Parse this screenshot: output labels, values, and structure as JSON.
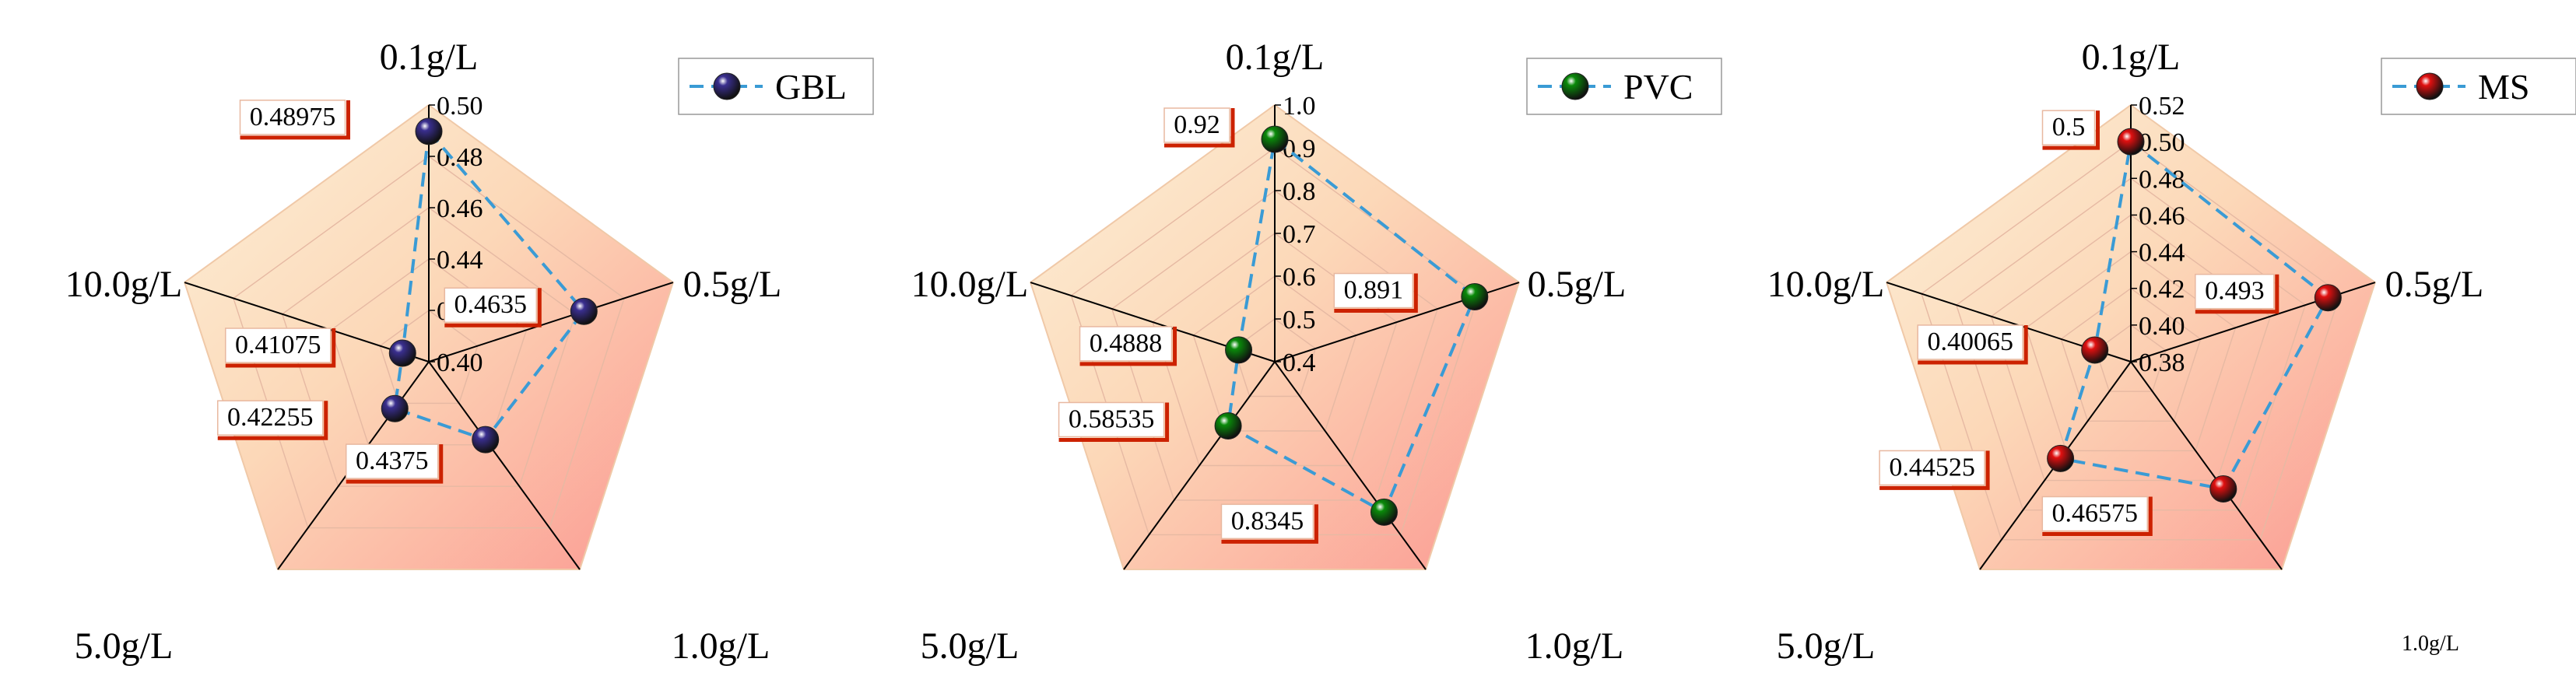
{
  "chart_data": [
    {
      "type": "radar",
      "categories": [
        "0.1g/L",
        "0.5g/L",
        "1.0g/L",
        "5.0g/L",
        "10.0g/L"
      ],
      "series": [
        {
          "name": "GBL",
          "values": [
            0.48975,
            0.4635,
            0.4375,
            0.42255,
            0.41075
          ]
        }
      ],
      "data_labels": [
        "0.48975",
        "0.4635",
        "0.4375",
        "0.42255",
        "0.41075"
      ],
      "rlim": [
        0.4,
        0.5
      ],
      "ticks": [
        "0.40",
        "0.42",
        "0.44",
        "0.46",
        "0.48",
        "0.50"
      ],
      "grid": true,
      "legend_position": "top-right",
      "colors": {
        "marker": "#3a2f8f",
        "line": "#3a9bd5",
        "label_box": "#cc2200"
      }
    },
    {
      "type": "radar",
      "categories": [
        "0.1g/L",
        "0.5g/L",
        "1.0g/L",
        "5.0g/L",
        "10.0g/L"
      ],
      "series": [
        {
          "name": "PVC",
          "values": [
            0.92,
            0.891,
            0.8345,
            0.58535,
            0.4888
          ]
        }
      ],
      "data_labels": [
        "0.92",
        "0.891",
        "0.8345",
        "0.58535",
        "0.4888"
      ],
      "rlim": [
        0.4,
        1.0
      ],
      "ticks": [
        "0.4",
        "0.5",
        "0.6",
        "0.7",
        "0.8",
        "0.9",
        "1.0"
      ],
      "grid": true,
      "legend_position": "top-right",
      "colors": {
        "marker": "#0a8a0a",
        "line": "#3a9bd5",
        "label_box": "#cc2200"
      }
    },
    {
      "type": "radar",
      "categories": [
        "0.1g/L",
        "0.5g/L",
        "1.0g/L",
        "5.0g/L",
        "10.0g/L"
      ],
      "series": [
        {
          "name": "MS",
          "values": [
            0.5,
            0.493,
            0.46575,
            0.44525,
            0.40065
          ]
        }
      ],
      "data_labels": [
        "0.5",
        "0.493",
        "0.46575",
        "0.44525",
        "0.40065"
      ],
      "rlim": [
        0.38,
        0.52
      ],
      "ticks": [
        "0.38",
        "0.40",
        "0.42",
        "0.44",
        "0.46",
        "0.48",
        "0.50",
        "0.52"
      ],
      "grid": true,
      "legend_position": "top-right",
      "colors": {
        "marker": "#e01010",
        "line": "#3a9bd5",
        "label_box": "#cc2200"
      }
    }
  ]
}
